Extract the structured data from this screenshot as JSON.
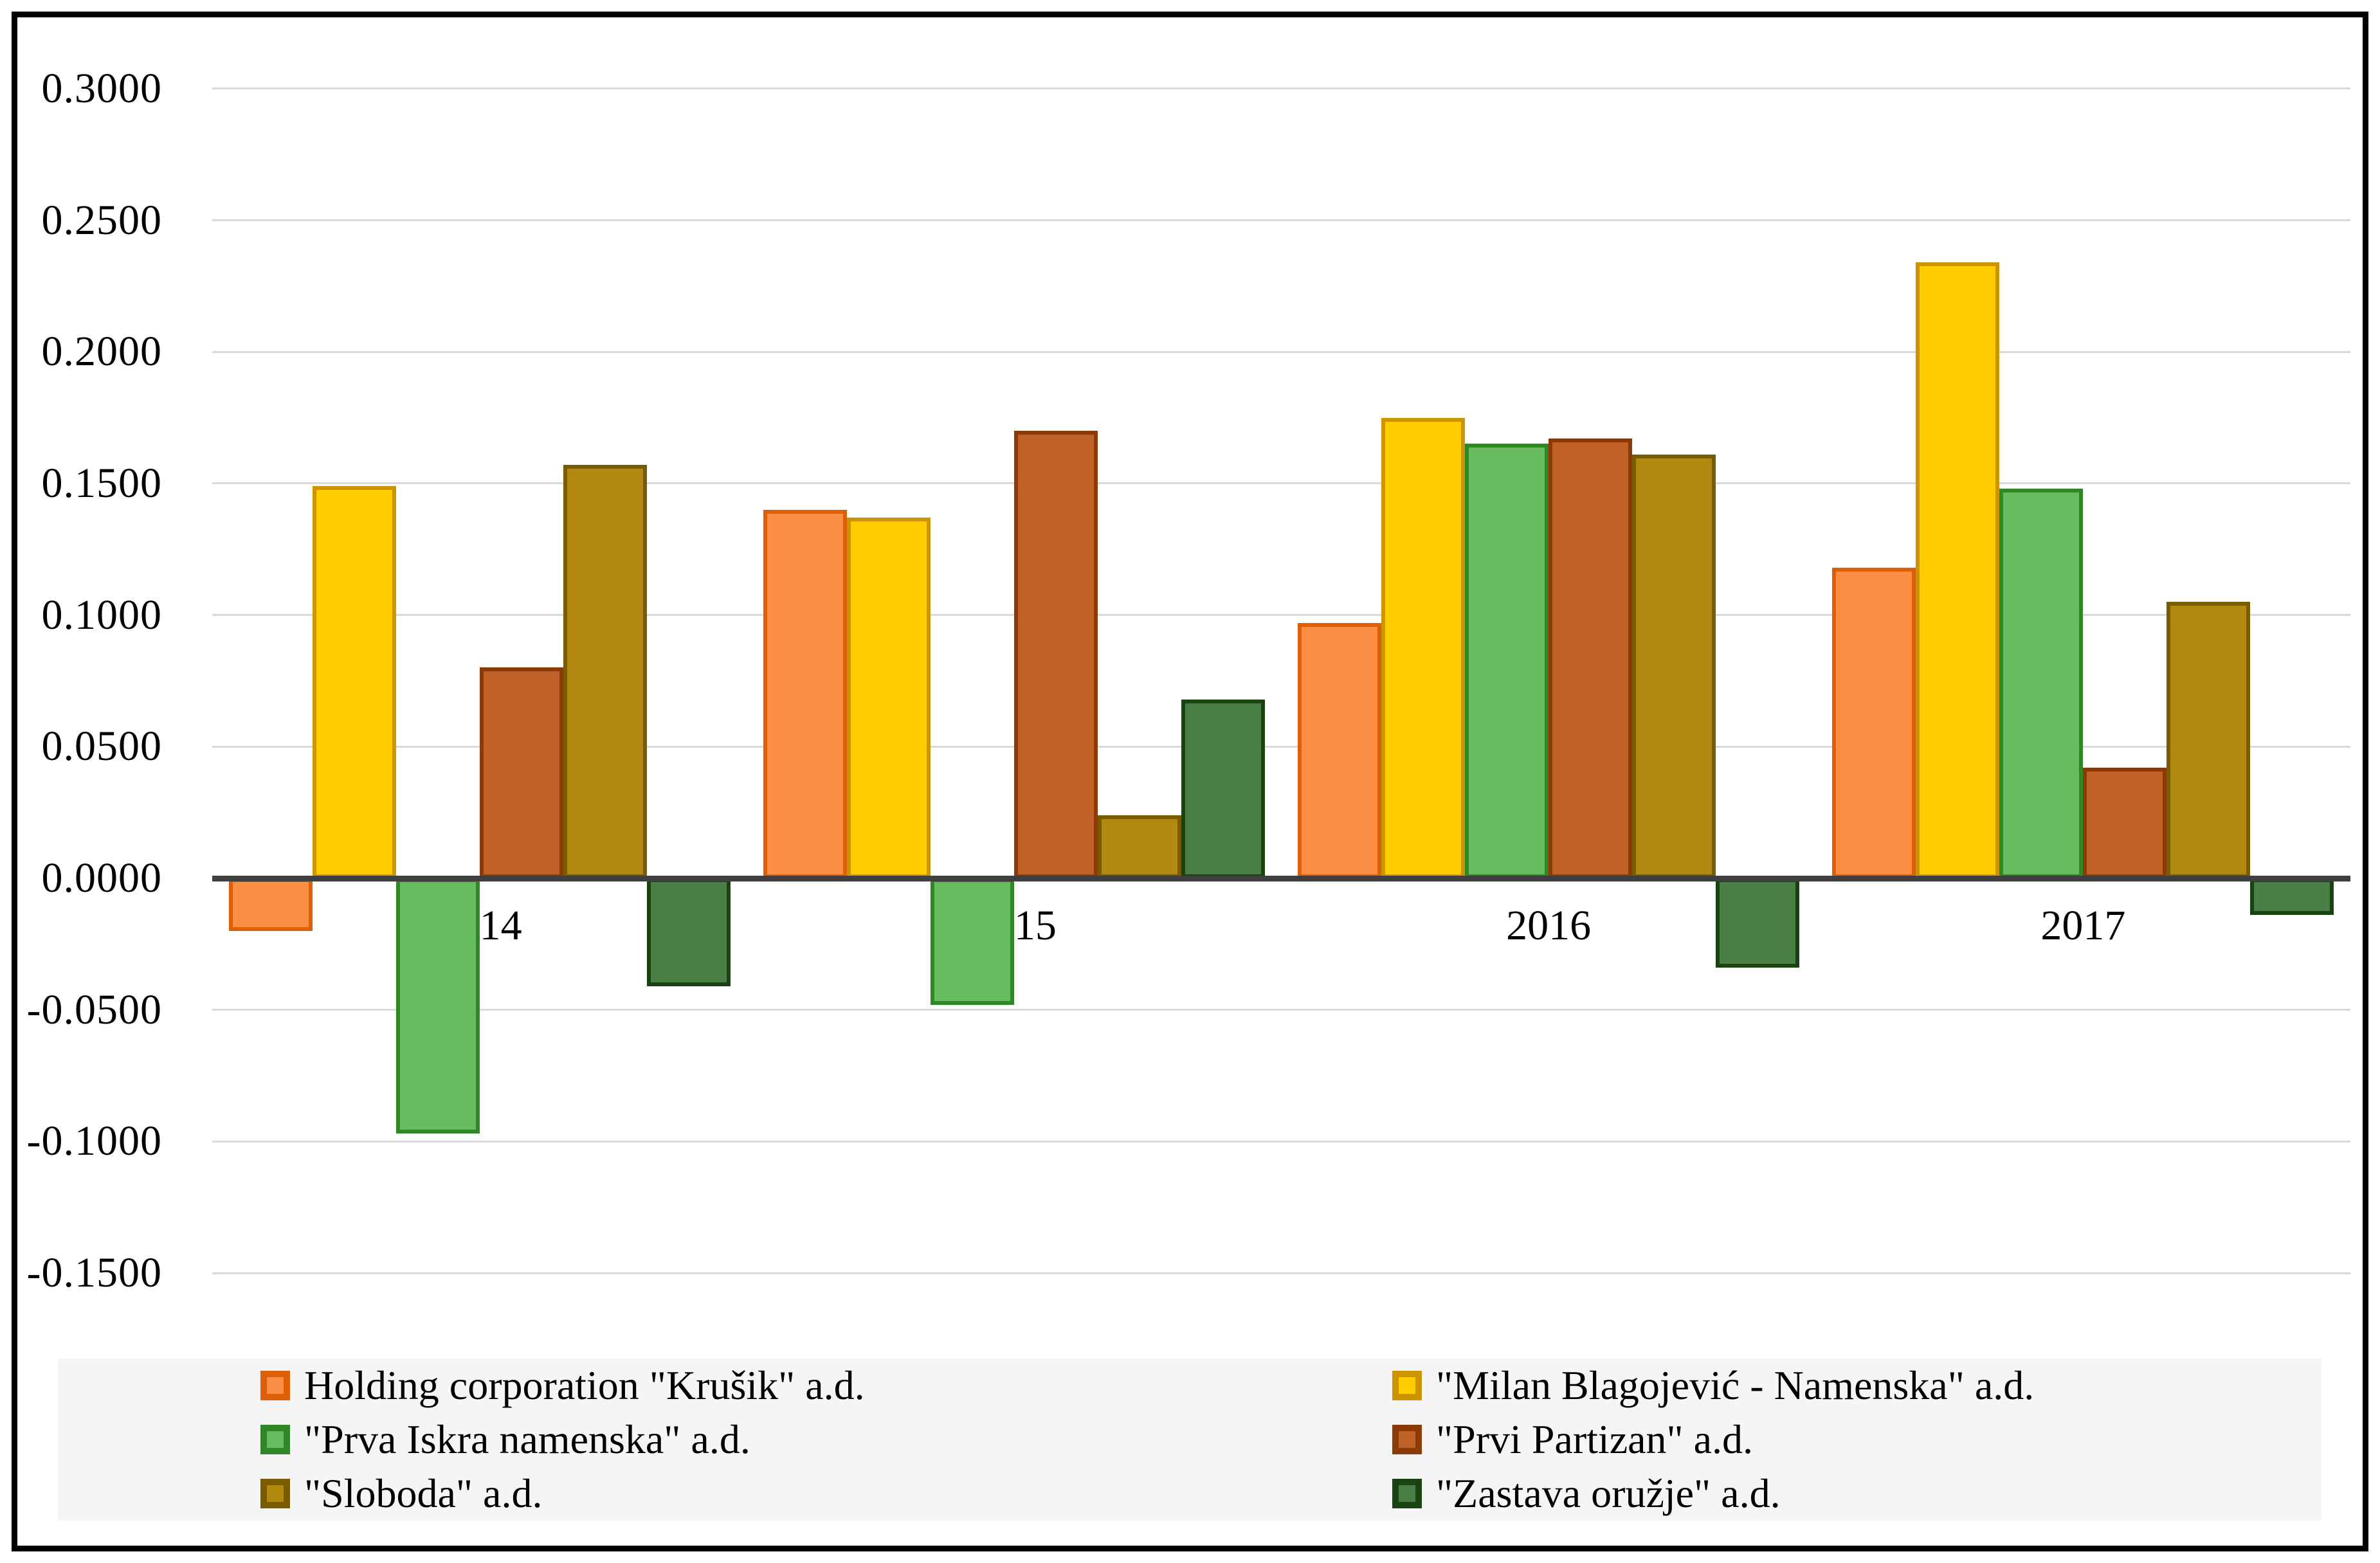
{
  "chart_data": {
    "type": "bar",
    "title": "",
    "xlabel": "",
    "ylabel": "",
    "categories": [
      "2014",
      "2015",
      "2016",
      "2017"
    ],
    "series": [
      {
        "name": "Holding corporation \"Krušik\" a.d.",
        "fill": "#FB8F45",
        "border": "#DD5F07",
        "values": [
          -0.02,
          0.14,
          0.097,
          0.118
        ]
      },
      {
        "name": "\"Milan Blagojević - Namenska\" a.d.",
        "fill": "#FFCC00",
        "border": "#CC9500",
        "values": [
          0.149,
          0.137,
          0.175,
          0.234
        ]
      },
      {
        "name": "\"Prva Iskra namenska\" a.d.",
        "fill": "#68BC5D",
        "border": "#2F8728",
        "values": [
          -0.097,
          -0.048,
          0.165,
          0.148
        ]
      },
      {
        "name": "\"Prvi Partizan\" a.d.",
        "fill": "#C06128",
        "border": "#8B3A08",
        "values": [
          0.08,
          0.17,
          0.167,
          0.042
        ]
      },
      {
        "name": "\"Sloboda\" a.d.",
        "fill": "#B3880F",
        "border": "#7A5C00",
        "values": [
          0.157,
          0.024,
          0.161,
          0.105
        ]
      },
      {
        "name": "\"Zastava oružje\" a.d.",
        "fill": "#4A7F46",
        "border": "#1A4212",
        "values": [
          -0.041,
          0.068,
          -0.034,
          -0.014
        ]
      }
    ],
    "ylim": [
      -0.15,
      0.3
    ],
    "ytick_step": 0.05,
    "ytick_labels": [
      "0.3000",
      "0.2500",
      "0.2000",
      "0.1500",
      "0.1000",
      "0.0500",
      "0.0000",
      "-0.0500",
      "-0.1000",
      "-0.1500"
    ],
    "grid": true,
    "legend_position": "bottom",
    "legend_columns": 2,
    "colors": {
      "gridline": "#D9D9D9",
      "zero_axis": "#3F3F3F",
      "legend_bg": "#F5F5F5",
      "frame": "#000000",
      "text": "#000000",
      "background": "#FFFFFF"
    }
  }
}
